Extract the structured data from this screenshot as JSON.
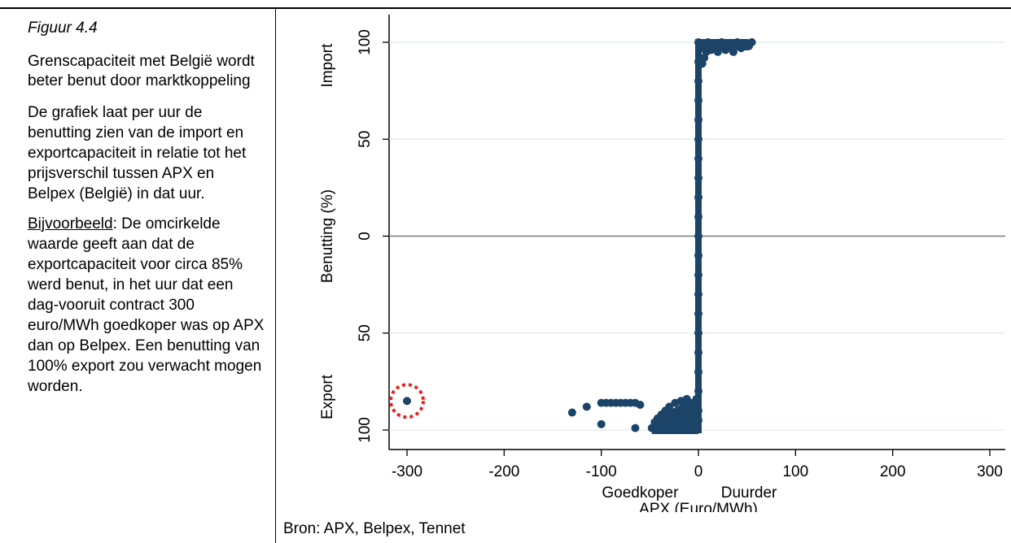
{
  "side_panel": {
    "figure_label": "Figuur 4.4",
    "title": "Grenscapaciteit met België wordt beter benut door marktkoppeling",
    "description": "De grafiek laat per uur de benutting zien van de import en exportcapaciteit in relatie tot het prijsverschil tussen APX en Belpex (België) in dat uur.",
    "example_lead": "Bijvoorbeeld",
    "example_text": ": De omcirkelde waarde geeft aan dat de exportcapaciteit voor circa 85% werd benut, in het uur dat een dag-vooruit contract 300 euro/MWh goedkoper was op APX dan op Belpex. Een benutting van 100% export zou verwacht mogen worden."
  },
  "source": "Bron: APX, Belpex, Tennet",
  "colors": {
    "marker": "#1c4468",
    "grid": "#dfe9ec",
    "zero_line": "#7a7a7a",
    "highlight": "#e8221b"
  },
  "chart_data": {
    "type": "scatter",
    "xlabel": "APX (Euro/MWh)",
    "ylabel": "Benutting (%)",
    "xlim": [
      -300,
      300
    ],
    "ylim": [
      -100,
      100
    ],
    "x_ticks": [
      -300,
      -200,
      -100,
      0,
      100,
      200,
      300
    ],
    "x_tick_labels": [
      "-300",
      "-200",
      "-100",
      "0",
      "100",
      "200",
      "300"
    ],
    "y_ticks": [
      -100,
      -50,
      0,
      50,
      100
    ],
    "y_tick_labels": [
      "100",
      "50",
      "0",
      "50",
      "100"
    ],
    "y_group_labels": {
      "import": "Import",
      "export": "Export"
    },
    "x_annotations": {
      "cheaper": "Goedkoper",
      "pricier": "Duurder"
    },
    "grid": true,
    "highlighted_point": {
      "x": -300,
      "y": -85
    },
    "series": [
      {
        "marker": "circle",
        "points": [
          [
            -300,
            -85
          ],
          [
            -130,
            -91
          ],
          [
            -115,
            -88
          ],
          [
            -100,
            -86
          ],
          [
            -95,
            -86
          ],
          [
            -90,
            -86
          ],
          [
            -85,
            -86
          ],
          [
            -80,
            -86
          ],
          [
            -75,
            -86
          ],
          [
            -70,
            -86
          ],
          [
            -65,
            -86
          ],
          [
            -60,
            -87
          ],
          [
            -100,
            -97
          ],
          [
            -65,
            -99
          ],
          [
            -48,
            -99
          ],
          [
            -45,
            -96
          ],
          [
            -42,
            -94
          ],
          [
            -40,
            -100
          ],
          [
            -38,
            -92
          ],
          [
            -36,
            -97
          ],
          [
            -34,
            -90
          ],
          [
            -32,
            -95
          ],
          [
            -30,
            -88
          ],
          [
            -28,
            -99
          ],
          [
            -26,
            -92
          ],
          [
            -24,
            -86
          ],
          [
            -22,
            -95
          ],
          [
            -20,
            -90
          ],
          [
            -18,
            -85
          ],
          [
            -16,
            -97
          ],
          [
            -14,
            -88
          ],
          [
            -12,
            -84
          ],
          [
            -10,
            -93
          ],
          [
            -8,
            -86
          ],
          [
            -6,
            -99
          ],
          [
            -4,
            -89
          ],
          [
            -2,
            -84
          ],
          [
            0,
            -95
          ],
          [
            -25,
            -100
          ],
          [
            -15,
            -100
          ],
          [
            -5,
            -100
          ],
          [
            0,
            -90
          ],
          [
            0,
            -80
          ],
          [
            0,
            -70
          ],
          [
            0,
            -60
          ],
          [
            0,
            -50
          ],
          [
            0,
            -40
          ],
          [
            0,
            -30
          ],
          [
            0,
            -20
          ],
          [
            0,
            -10
          ],
          [
            0,
            0
          ],
          [
            0,
            10
          ],
          [
            0,
            20
          ],
          [
            0,
            30
          ],
          [
            0,
            40
          ],
          [
            0,
            50
          ],
          [
            0,
            60
          ],
          [
            0,
            70
          ],
          [
            0,
            80
          ],
          [
            0,
            90
          ],
          [
            0,
            100
          ],
          [
            2,
            90
          ],
          [
            3,
            97
          ],
          [
            5,
            99
          ],
          [
            8,
            95
          ],
          [
            10,
            100
          ],
          [
            13,
            96
          ],
          [
            16,
            99
          ],
          [
            20,
            95
          ],
          [
            24,
            100
          ],
          [
            28,
            96
          ],
          [
            32,
            99
          ],
          [
            36,
            95
          ],
          [
            40,
            100
          ],
          [
            44,
            97
          ],
          [
            48,
            99
          ],
          [
            52,
            98
          ],
          [
            55,
            100
          ],
          [
            4,
            89
          ],
          [
            6,
            92
          ]
        ]
      }
    ]
  }
}
